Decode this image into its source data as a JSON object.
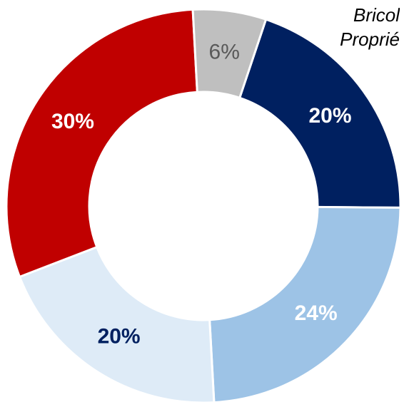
{
  "chart_data": {
    "type": "pie",
    "variant": "donut",
    "slices": [
      {
        "value": 20,
        "label": "20%",
        "color": "#002060",
        "label_color": "#ffffff"
      },
      {
        "value": 24,
        "label": "24%",
        "color": "#9DC3E6",
        "label_color": "#ffffff"
      },
      {
        "value": 20,
        "label": "20%",
        "color": "#DEEBF7",
        "label_color": "#002060"
      },
      {
        "value": 30,
        "label": "30%",
        "color": "#C00000",
        "label_color": "#ffffff"
      },
      {
        "value": 6,
        "label": "6%",
        "color": "#BFBFBF",
        "label_color": "#595959"
      }
    ],
    "legend_fragments": [
      "Bricol",
      "Proprié"
    ]
  }
}
